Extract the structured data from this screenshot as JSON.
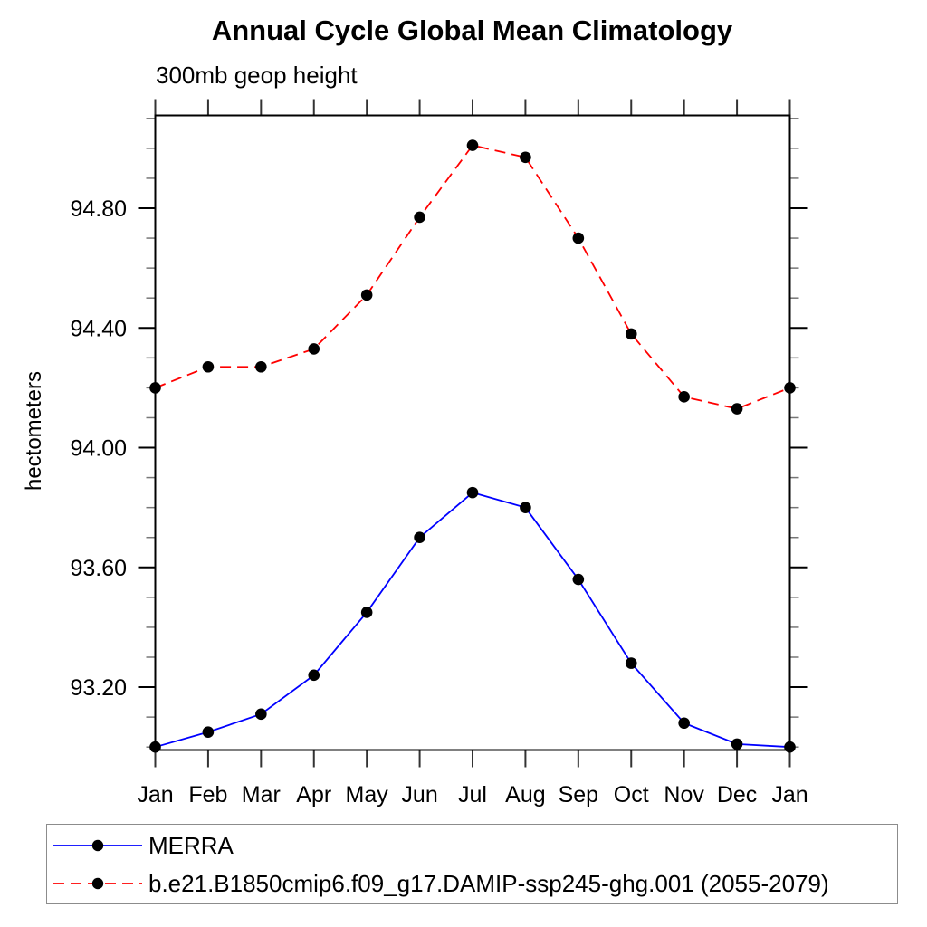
{
  "chart_data": {
    "type": "line",
    "title": "Annual Cycle Global Mean Climatology",
    "subtitle": "300mb geop height",
    "ylabel": "hectometers",
    "xlabel": "",
    "x_categories": [
      "Jan",
      "Feb",
      "Mar",
      "Apr",
      "May",
      "Jun",
      "Jul",
      "Aug",
      "Sep",
      "Oct",
      "Nov",
      "Dec",
      "Jan"
    ],
    "ylim": [
      92.99,
      95.11
    ],
    "ytick_major_values": [
      93.2,
      93.6,
      94.0,
      94.4,
      94.8
    ],
    "ytick_major_labels": [
      "93.20",
      "93.60",
      "94.00",
      "94.40",
      "94.80"
    ],
    "ytick_minor_step": 0.1,
    "grid": false,
    "frame": true,
    "marker_color": "#000000",
    "axis_color": "#000000",
    "legend_position": "bottom-left-outside-box",
    "series": [
      {
        "name": "MERRA",
        "color": "#0000ff",
        "line_style": "solid",
        "marker": "filled-circle",
        "values": [
          93.0,
          93.05,
          93.11,
          93.24,
          93.45,
          93.7,
          93.85,
          93.8,
          93.56,
          93.28,
          93.08,
          93.01,
          93.0
        ]
      },
      {
        "name": "b.e21.B1850cmip6.f09_g17.DAMIP-ssp245-ghg.001 (2055-2079)",
        "color": "#ff0000",
        "line_style": "dashed",
        "marker": "filled-circle",
        "values": [
          94.2,
          94.27,
          94.27,
          94.33,
          94.51,
          94.77,
          95.01,
          94.97,
          94.7,
          94.38,
          94.17,
          94.13,
          94.2
        ]
      }
    ]
  }
}
